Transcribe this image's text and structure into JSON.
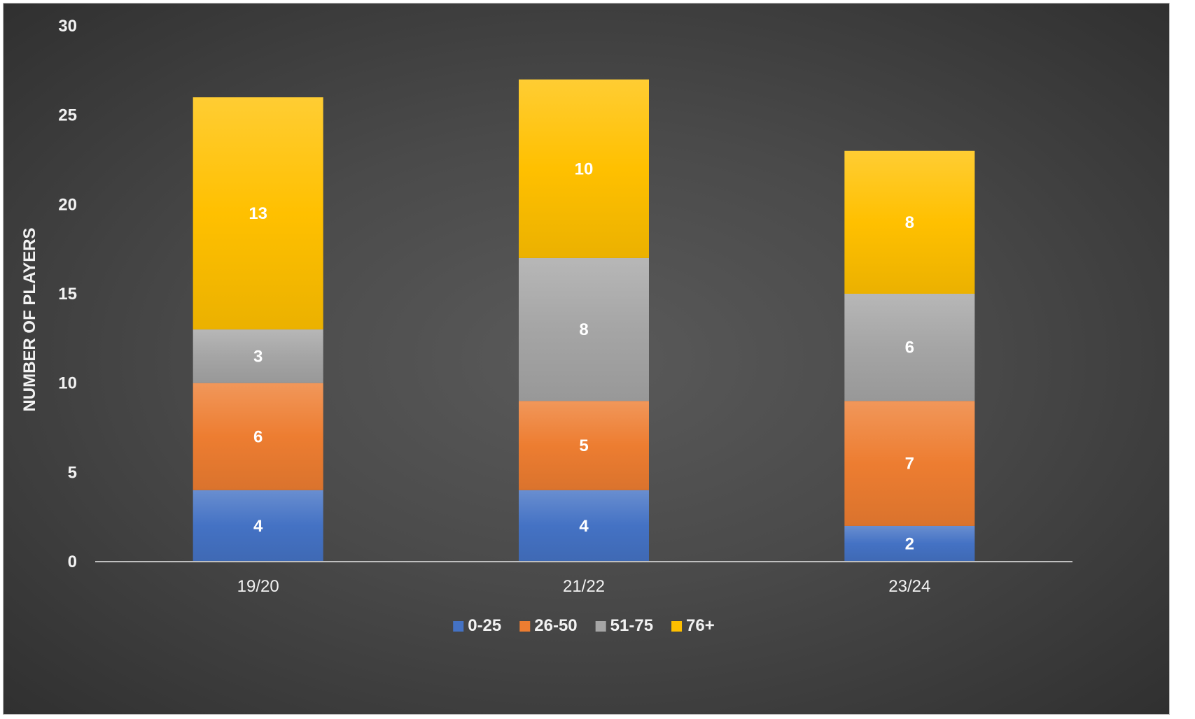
{
  "chart_data": {
    "type": "bar",
    "stacked": true,
    "categories": [
      "19/20",
      "21/22",
      "23/24"
    ],
    "series": [
      {
        "name": "0-25",
        "values": [
          4,
          4,
          2
        ],
        "color": "#4472c4"
      },
      {
        "name": "26-50",
        "values": [
          6,
          5,
          7
        ],
        "color": "#ed7d31"
      },
      {
        "name": "51-75",
        "values": [
          3,
          8,
          6
        ],
        "color": "#a5a5a5"
      },
      {
        "name": "76+",
        "values": [
          13,
          10,
          8
        ],
        "color": "#ffc000"
      }
    ],
    "ylabel": "NUMBER OF PLAYERS",
    "ylim": [
      0,
      30
    ],
    "yticks": [
      0,
      5,
      10,
      15,
      20,
      25,
      30
    ],
    "grid": false,
    "legend_position": "bottom",
    "data_labels": true,
    "background": "#4a4a4a"
  }
}
